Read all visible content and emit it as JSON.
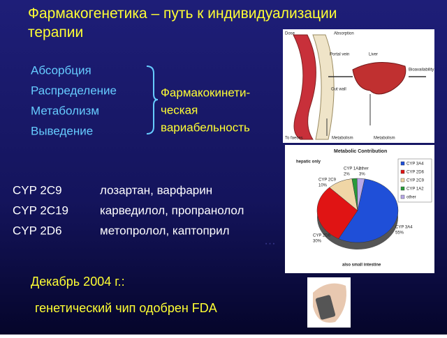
{
  "title": "Фармакогенетика – путь к индивидуализации терапии",
  "processes": [
    "Абсорбция",
    "Распределение",
    "Метаболизм",
    "Выведение"
  ],
  "process_group": [
    "Фармакокинети-",
    "ческая",
    "вариабельность"
  ],
  "pk_figure": {
    "labels": [
      "Dose",
      "Absorption",
      "Portal vein",
      "Liver",
      "Bioavailability",
      "Gut wall",
      "To faeces",
      "Metabolism",
      "Metabolism"
    ]
  },
  "metabolic_chart": {
    "title": "Metabolic Contribution",
    "subtitle": "hepatic only",
    "footnote": "also small intestine",
    "slices": [
      {
        "name": "CYP 3A4",
        "value": 55,
        "value_label": "55%",
        "color": "#1f4fd8"
      },
      {
        "name": "CYP 2D6",
        "value": 30,
        "value_label": "30%",
        "color": "#e01414"
      },
      {
        "name": "CYP 2C9",
        "value": 10,
        "value_label": "10%",
        "color": "#f0d6a6"
      },
      {
        "name": "CYP 1A2",
        "value": 2,
        "value_label": "2%",
        "color": "#2a9a3a"
      },
      {
        "name": "other",
        "value": 3,
        "value_label": "3%",
        "color": "#b8a8e8"
      }
    ]
  },
  "drug_table": {
    "rows": [
      [
        "CYP 2C9",
        "лозартан, варфарин"
      ],
      [
        "CYP 2C19",
        "карведилол, пропранолол"
      ],
      [
        "CYP 2D6",
        "метопролол, каптоприл"
      ]
    ],
    "trailing": "…"
  },
  "footer": {
    "date": "Декабрь 2004 г.:",
    "note": "генетический чип одобрен FDA"
  }
}
